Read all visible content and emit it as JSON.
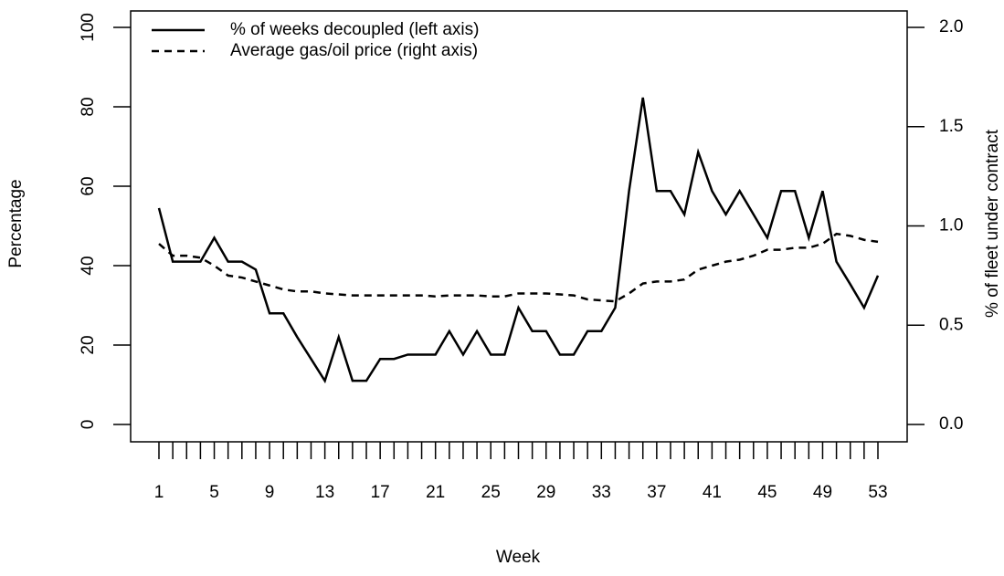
{
  "chart_data": {
    "type": "line",
    "x_label": "Week",
    "y_label": "Percentage",
    "y2_label": "% of fleet under contract",
    "x": [
      1,
      2,
      3,
      4,
      5,
      6,
      7,
      8,
      9,
      10,
      11,
      12,
      13,
      14,
      15,
      16,
      17,
      18,
      19,
      20,
      21,
      22,
      23,
      24,
      25,
      26,
      27,
      28,
      29,
      30,
      31,
      32,
      33,
      34,
      35,
      36,
      37,
      38,
      39,
      40,
      41,
      42,
      43,
      44,
      45,
      46,
      47,
      48,
      49,
      50,
      51,
      52,
      53
    ],
    "xlim": [
      1,
      53
    ],
    "xticks": [
      1,
      5,
      9,
      13,
      17,
      21,
      25,
      29,
      33,
      37,
      41,
      45,
      49,
      53
    ],
    "xminorticks": [
      1,
      2,
      3,
      4,
      5,
      6,
      7,
      8,
      9,
      10,
      11,
      12,
      13,
      14,
      15,
      16,
      17,
      18,
      19,
      20,
      21,
      22,
      23,
      24,
      25,
      26,
      27,
      28,
      29,
      30,
      31,
      32,
      33,
      34,
      35,
      36,
      37,
      38,
      39,
      40,
      41,
      42,
      43,
      44,
      45,
      46,
      47,
      48,
      49,
      50,
      51,
      52,
      53
    ],
    "ylim": [
      0,
      100
    ],
    "yticks": [
      0,
      20,
      40,
      60,
      80,
      100
    ],
    "y2lim": [
      0,
      2
    ],
    "y2ticks": [
      {
        "value": 0,
        "label": "0.0"
      },
      0.5,
      {
        "value": 1,
        "label": "1.0"
      },
      1.5,
      {
        "value": 2,
        "label": "2.0"
      }
    ],
    "legend": "top-left",
    "series": [
      {
        "name": "% of weeks decoupled (left axis)",
        "color": "#000000",
        "dash": "solid",
        "values": [
          54.5,
          41,
          41,
          41,
          47,
          41,
          41,
          39,
          28,
          28,
          22,
          16.5,
          11,
          22,
          11,
          11,
          16.5,
          16.5,
          17.6,
          17.6,
          17.6,
          23.5,
          17.6,
          23.5,
          17.6,
          17.6,
          29.4,
          23.5,
          23.5,
          17.6,
          17.6,
          23.5,
          23.5,
          29.4,
          58.8,
          82.3,
          58.8,
          58.8,
          52.9,
          68.6,
          58.8,
          52.9,
          58.8,
          52.9,
          47,
          58.8,
          58.8,
          47,
          58.8,
          41,
          35.3,
          29.4,
          37.5
        ]
      },
      {
        "name": "Average gas/oil price (right axis)",
        "color": "#000000",
        "dash": "dashed",
        "axis": "y2",
        "values": [
          0.91,
          0.85,
          0.85,
          0.84,
          0.8,
          0.75,
          0.74,
          0.72,
          0.7,
          0.68,
          0.67,
          0.67,
          0.66,
          0.655,
          0.65,
          0.65,
          0.65,
          0.65,
          0.65,
          0.65,
          0.645,
          0.65,
          0.65,
          0.65,
          0.645,
          0.645,
          0.66,
          0.66,
          0.66,
          0.655,
          0.65,
          0.63,
          0.625,
          0.62,
          0.66,
          0.71,
          0.72,
          0.72,
          0.73,
          0.78,
          0.8,
          0.82,
          0.83,
          0.85,
          0.88,
          0.88,
          0.89,
          0.89,
          0.91,
          0.96,
          0.95,
          0.93,
          0.92
        ]
      }
    ]
  }
}
